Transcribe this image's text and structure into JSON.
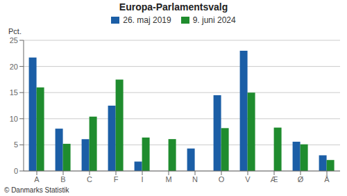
{
  "chart_data": {
    "type": "bar",
    "title": "Europa-Parlamentsvalg",
    "categories": [
      "A",
      "B",
      "C",
      "F",
      "I",
      "M",
      "N",
      "O",
      "V",
      "Æ",
      "Ø",
      "Å"
    ],
    "series": [
      {
        "name": "26. maj 2019",
        "color": "#1b5ea6",
        "values": [
          21.7,
          8.1,
          6.1,
          12.5,
          1.8,
          0,
          4.3,
          14.5,
          23.0,
          0,
          5.6,
          3.0
        ]
      },
      {
        "name": "9. juni 2024",
        "color": "#1f8c2e",
        "values": [
          16.0,
          5.2,
          10.4,
          17.5,
          6.4,
          6.1,
          0,
          8.2,
          15.0,
          8.3,
          5.1,
          2.1
        ]
      }
    ],
    "y_label": "Pct.",
    "ylim": [
      0,
      25
    ],
    "yticks": [
      0,
      5,
      10,
      15,
      20,
      25
    ],
    "grid": true,
    "legend": "top",
    "annotations": [
      "© Danmarks Statistik"
    ]
  }
}
